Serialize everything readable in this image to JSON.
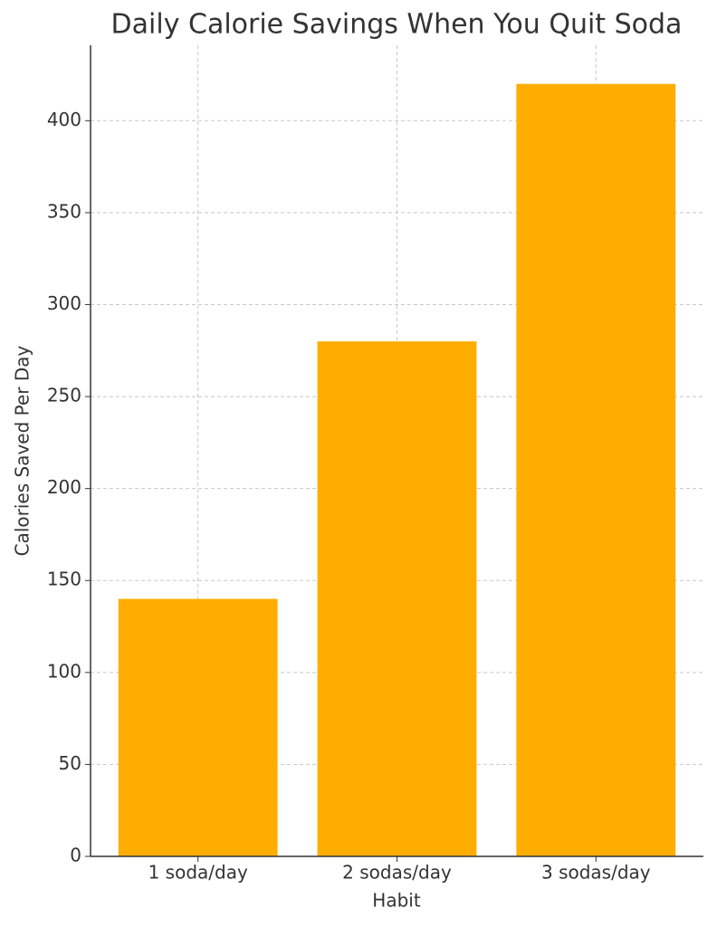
{
  "chart_data": {
    "type": "bar",
    "title": "Daily Calorie Savings When You Quit Soda",
    "x_label": "Habit",
    "y_label": "Calories Saved Per Day",
    "categories": [
      "1 soda/day",
      "2 sodas/day",
      "3 sodas/day"
    ],
    "values": [
      140,
      280,
      420
    ],
    "color": "#ffad00",
    "ylim": [
      0,
      441
    ],
    "yticks": [
      0,
      50,
      100,
      150,
      200,
      250,
      300,
      350,
      400
    ],
    "grid": true
  }
}
